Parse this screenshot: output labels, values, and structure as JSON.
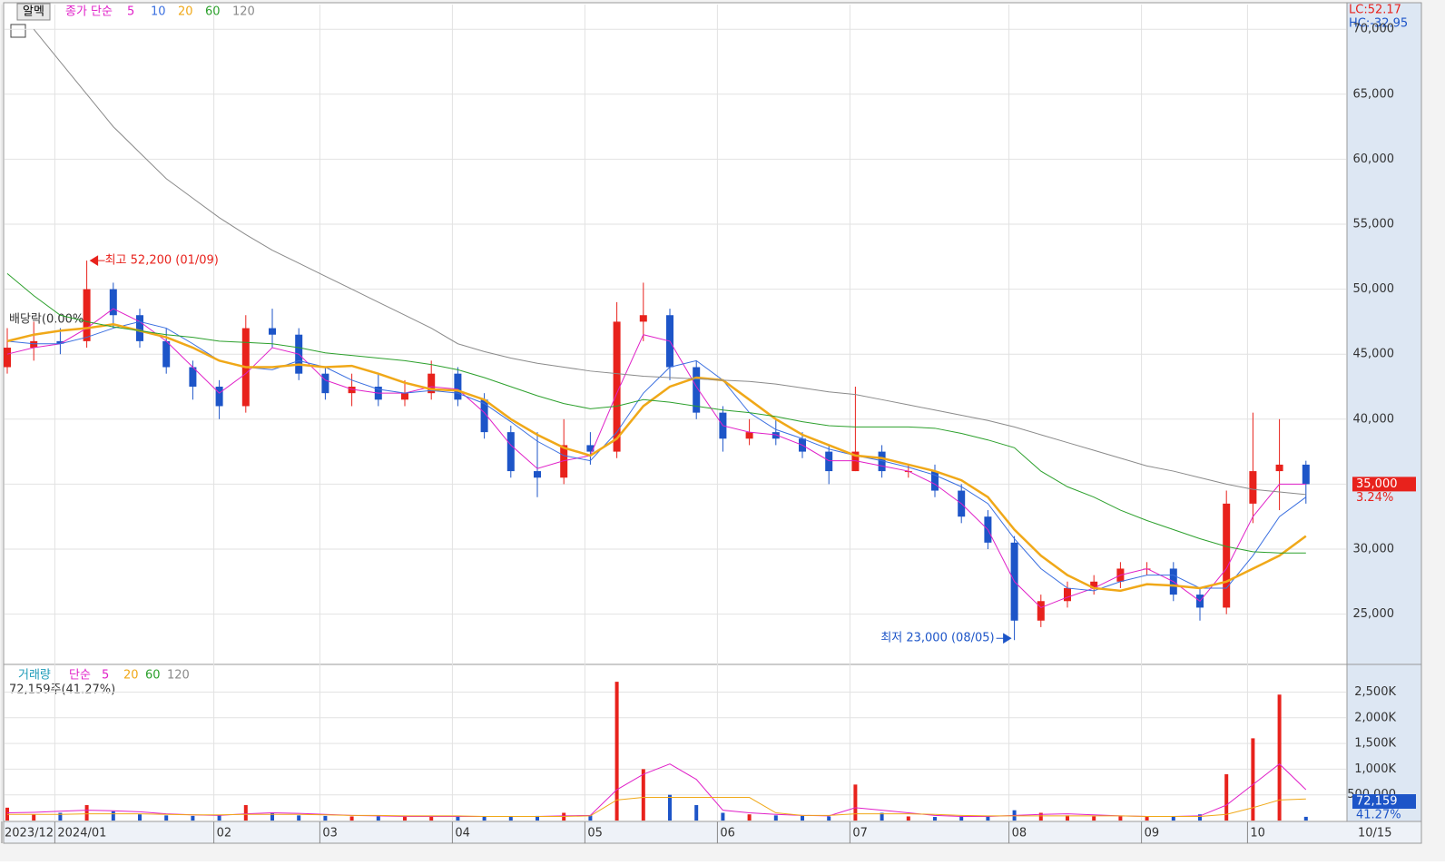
{
  "chart_data": {
    "type": "candlestick",
    "title_button": "알멕",
    "ma_title": "종가 단순",
    "ma_periods": [
      "5",
      "10",
      "20",
      "60",
      "120"
    ],
    "lc_label": "LC:52.17",
    "hc_label": "HC:-32.95",
    "annotations": {
      "high": "최고 52,200 (01/09)",
      "low": "최저 23,000 (08/05)",
      "dividend": "배당락(0.00%)"
    },
    "last_price_label": "35,000",
    "last_change_label": "3.24%",
    "xaxis_end_label": "10/15",
    "categories": [
      "2023/12",
      null,
      "2024/01",
      null,
      null,
      null,
      null,
      null,
      "02",
      null,
      null,
      null,
      "03",
      null,
      null,
      null,
      null,
      "04",
      null,
      null,
      null,
      null,
      "05",
      null,
      null,
      null,
      null,
      "06",
      null,
      null,
      null,
      null,
      "07",
      null,
      null,
      null,
      null,
      null,
      "08",
      null,
      null,
      null,
      null,
      "09",
      null,
      null,
      null,
      "10",
      null,
      null
    ],
    "open": [
      44000,
      45500,
      46000,
      46000,
      50000,
      48000,
      46000,
      44000,
      42500,
      41000,
      47000,
      46500,
      43500,
      42000,
      42500,
      41500,
      42000,
      43500,
      41500,
      39000,
      36000,
      35500,
      38000,
      37500,
      47500,
      48000,
      44000,
      40500,
      38500,
      39000,
      38500,
      37500,
      36000,
      37500,
      36000,
      36000,
      34500,
      32500,
      30500,
      24500,
      26000,
      27000,
      27500,
      28500,
      28500,
      26500,
      25500,
      33500,
      36000,
      36500
    ],
    "high": [
      47000,
      47500,
      47000,
      52200,
      50500,
      48500,
      47000,
      44500,
      43000,
      48000,
      48500,
      47000,
      44000,
      43500,
      43500,
      43000,
      44500,
      44000,
      42000,
      39500,
      39000,
      40000,
      39000,
      49000,
      50500,
      48500,
      44500,
      41000,
      40000,
      40000,
      39000,
      38000,
      42500,
      38000,
      36500,
      36500,
      35000,
      33000,
      31000,
      26500,
      27500,
      28000,
      29000,
      29000,
      29000,
      27000,
      34500,
      40500,
      40000,
      36800
    ],
    "low": [
      43500,
      44500,
      45000,
      45500,
      47000,
      45500,
      43500,
      41500,
      40000,
      40500,
      45500,
      43000,
      41500,
      41000,
      41000,
      41000,
      41500,
      41000,
      38500,
      35500,
      34000,
      35000,
      36500,
      37000,
      46000,
      43000,
      40000,
      37500,
      38000,
      38000,
      37000,
      35000,
      36000,
      35500,
      35500,
      34000,
      32000,
      30000,
      23000,
      24000,
      25500,
      26500,
      27000,
      28000,
      26000,
      24500,
      25000,
      32000,
      33000,
      33500
    ],
    "close": [
      45500,
      46000,
      45800,
      50000,
      48000,
      46000,
      44000,
      42500,
      41000,
      47000,
      46500,
      43500,
      42000,
      42500,
      41500,
      42000,
      43500,
      41500,
      39000,
      36000,
      35500,
      38000,
      37500,
      47500,
      48000,
      44000,
      40500,
      38500,
      39000,
      38500,
      37500,
      36000,
      37500,
      36000,
      36000,
      34500,
      32500,
      30500,
      24500,
      26000,
      27000,
      27500,
      28500,
      28500,
      26500,
      25500,
      33500,
      36000,
      36500,
      35000
    ],
    "up_color": "#e8221c",
    "down_color": "#1d55c8",
    "series": [
      {
        "name": "5",
        "color": "#e020c8",
        "values": [
          45000,
          45500,
          45800,
          47000,
          48500,
          47500,
          46000,
          44000,
          42000,
          43500,
          45500,
          45000,
          43000,
          42300,
          42000,
          42000,
          42500,
          42300,
          40500,
          38000,
          36200,
          36800,
          37200,
          42000,
          46500,
          46000,
          42500,
          39500,
          39000,
          38800,
          38000,
          36800,
          36800,
          36400,
          36000,
          35000,
          33500,
          31500,
          27500,
          25500,
          26300,
          27000,
          28000,
          28500,
          27500,
          26000,
          28500,
          32500,
          35000,
          35000
        ]
      },
      {
        "name": "10",
        "color": "#3a6fe0",
        "values": [
          46000,
          45800,
          45800,
          46300,
          47000,
          47500,
          47000,
          45800,
          44500,
          44000,
          43800,
          44500,
          44000,
          43000,
          42300,
          42000,
          42200,
          42000,
          41200,
          39800,
          38300,
          37200,
          36800,
          39000,
          42000,
          44000,
          44500,
          43000,
          40500,
          39200,
          38500,
          37700,
          37200,
          36800,
          36300,
          35700,
          34800,
          33500,
          30800,
          28500,
          27000,
          26800,
          27500,
          28000,
          28000,
          27000,
          27000,
          29500,
          32500,
          34000
        ]
      },
      {
        "name": "20",
        "color": "#f0a818",
        "values": [
          46000,
          46500,
          46800,
          47000,
          47300,
          46800,
          46300,
          45500,
          44500,
          44000,
          44000,
          44200,
          44000,
          44100,
          43500,
          42800,
          42300,
          42200,
          41500,
          40000,
          38800,
          37800,
          37200,
          38500,
          41000,
          42500,
          43200,
          43000,
          41500,
          40000,
          38800,
          38000,
          37200,
          37000,
          36500,
          36000,
          35300,
          34000,
          31500,
          29500,
          28000,
          27000,
          26800,
          27300,
          27200,
          27000,
          27500,
          28500,
          29500,
          31000
        ]
      },
      {
        "name": "60",
        "color": "#2ca02c",
        "values": [
          51200,
          49500,
          48000,
          47500,
          47100,
          46800,
          46500,
          46300,
          46000,
          45900,
          45800,
          45500,
          45100,
          44900,
          44700,
          44500,
          44200,
          43800,
          43200,
          42500,
          41800,
          41200,
          40800,
          41000,
          41500,
          41300,
          41000,
          40700,
          40500,
          40200,
          39800,
          39500,
          39400,
          39400,
          39400,
          39300,
          38900,
          38400,
          37800,
          36000,
          34800,
          34000,
          33000,
          32200,
          31500,
          30800,
          30200,
          29800,
          29700,
          29700
        ]
      },
      {
        "name": "120",
        "color": "#8a8a8a",
        "values": [
          null,
          70000,
          67500,
          65000,
          62500,
          60500,
          58500,
          57000,
          55500,
          54200,
          53000,
          52000,
          51000,
          50000,
          49000,
          48000,
          47000,
          45800,
          45200,
          44700,
          44300,
          44000,
          43700,
          43500,
          43300,
          43200,
          43100,
          43000,
          42900,
          42700,
          42400,
          42100,
          41900,
          41500,
          41100,
          40700,
          40300,
          39900,
          39400,
          38800,
          38200,
          37600,
          37000,
          36400,
          36000,
          35500,
          35000,
          34600,
          34400,
          34200
        ]
      }
    ],
    "ylim": [
      21200,
      71900
    ],
    "yticks": [
      {
        "value": 25000,
        "label": "25,000"
      },
      {
        "value": 30000,
        "label": "30,000"
      },
      {
        "value": 35000,
        "label": "35,000"
      },
      {
        "value": 40000,
        "label": "40,000"
      },
      {
        "value": 45000,
        "label": "45,000"
      },
      {
        "value": 50000,
        "label": "50,000"
      },
      {
        "value": 55000,
        "label": "55,000"
      },
      {
        "value": 60000,
        "label": "60,000"
      },
      {
        "value": 65000,
        "label": "65,000"
      },
      {
        "value": 70000,
        "label": "70,000"
      }
    ],
    "volume": {
      "title": "거래량",
      "ma_title": "단순",
      "ma_periods": [
        "5",
        "20",
        "60",
        "120"
      ],
      "info_label": "72,159주(41.27%)",
      "last_label": "72,159",
      "last_pct_label": "41.27%",
      "values": [
        250000,
        120000,
        150000,
        300000,
        180000,
        120000,
        100000,
        90000,
        100000,
        300000,
        150000,
        100000,
        90000,
        80000,
        80000,
        70000,
        90000,
        80000,
        80000,
        70000,
        90000,
        150000,
        100000,
        2700000,
        1000000,
        500000,
        300000,
        150000,
        120000,
        100000,
        90000,
        80000,
        700000,
        150000,
        80000,
        70000,
        80000,
        90000,
        200000,
        150000,
        100000,
        80000,
        80000,
        70000,
        80000,
        120000,
        900000,
        1600000,
        2450000,
        72159
      ],
      "series": [
        {
          "name": "5",
          "color": "#e020c8",
          "values": [
            150000,
            160000,
            180000,
            200000,
            190000,
            170000,
            130000,
            110000,
            100000,
            130000,
            150000,
            140000,
            120000,
            100000,
            90000,
            80000,
            80000,
            80000,
            80000,
            80000,
            80000,
            90000,
            100000,
            600000,
            900000,
            1100000,
            800000,
            200000,
            150000,
            120000,
            100000,
            90000,
            250000,
            200000,
            150000,
            100000,
            80000,
            80000,
            100000,
            120000,
            130000,
            110000,
            90000,
            80000,
            80000,
            90000,
            300000,
            700000,
            1100000,
            600000
          ]
        },
        {
          "name": "20",
          "color": "#f0a818",
          "values": [
            120000,
            120000,
            120000,
            130000,
            130000,
            130000,
            120000,
            110000,
            110000,
            120000,
            120000,
            120000,
            110000,
            100000,
            100000,
            90000,
            90000,
            90000,
            80000,
            80000,
            80000,
            80000,
            90000,
            400000,
            450000,
            450000,
            450000,
            450000,
            450000,
            150000,
            100000,
            100000,
            130000,
            130000,
            130000,
            120000,
            100000,
            90000,
            90000,
            90000,
            90000,
            90000,
            90000,
            80000,
            80000,
            80000,
            120000,
            250000,
            400000,
            420000
          ]
        }
      ],
      "ylim": [
        0,
        3020000
      ],
      "yticks": [
        {
          "value": 500000,
          "label": "500,000"
        },
        {
          "value": 1000000,
          "label": "1,000K"
        },
        {
          "value": 1500000,
          "label": "1,500K"
        },
        {
          "value": 2000000,
          "label": "2,000K"
        },
        {
          "value": 2500000,
          "label": "2,500K"
        }
      ]
    }
  }
}
